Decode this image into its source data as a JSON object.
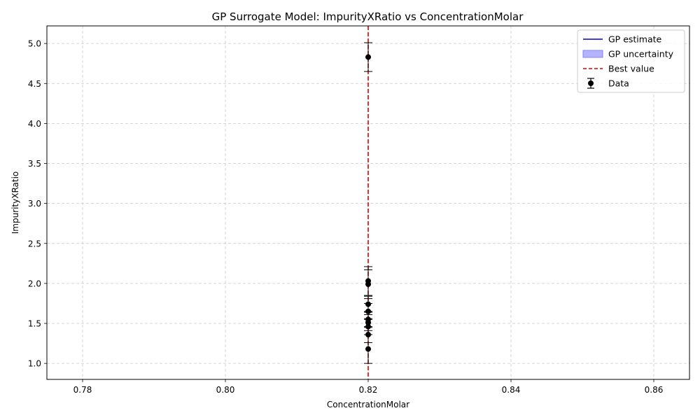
{
  "chart_data": {
    "type": "scatter",
    "title": "GP Surrogate Model: ImpurityXRatio vs ConcentrationMolar",
    "xlabel": "ConcentrationMolar",
    "ylabel": "ImpurityXRatio",
    "xlim": [
      0.775,
      0.865
    ],
    "ylim": [
      0.8,
      5.22
    ],
    "grid": true,
    "legend_position": "top-right",
    "x_ticks": [
      0.78,
      0.8,
      0.82,
      0.84,
      0.86
    ],
    "x_tick_labels": [
      "0.78",
      "0.80",
      "0.82",
      "0.84",
      "0.86"
    ],
    "y_ticks": [
      1.0,
      1.5,
      2.0,
      2.5,
      3.0,
      3.5,
      4.0,
      4.5,
      5.0
    ],
    "y_tick_labels": [
      "1.0",
      "1.5",
      "2.0",
      "2.5",
      "3.0",
      "3.5",
      "4.0",
      "4.5",
      "5.0"
    ],
    "best_value_x": 0.82,
    "legend": [
      {
        "label": "GP estimate",
        "kind": "line",
        "color": "#0000cc"
      },
      {
        "label": "GP uncertainty",
        "kind": "patch",
        "color": "#b3b3ff",
        "edge": "#8080ff"
      },
      {
        "label": "Best value",
        "kind": "dashed",
        "color": "#e00000"
      },
      {
        "label": "Data",
        "kind": "errorbar",
        "color": "#000000"
      }
    ],
    "series": [
      {
        "name": "Data",
        "points": [
          {
            "x": 0.82,
            "y": 4.83,
            "err": 0.18
          },
          {
            "x": 0.82,
            "y": 2.03,
            "err": 0.18
          },
          {
            "x": 0.82,
            "y": 1.99,
            "err": 0.18
          },
          {
            "x": 0.82,
            "y": 1.74,
            "err": 0.1
          },
          {
            "x": 0.82,
            "y": 1.65,
            "err": 0.1
          },
          {
            "x": 0.82,
            "y": 1.55,
            "err": 0.1
          },
          {
            "x": 0.82,
            "y": 1.51,
            "err": 0.1
          },
          {
            "x": 0.82,
            "y": 1.46,
            "err": 0.1
          },
          {
            "x": 0.82,
            "y": 1.36,
            "err": 0.1
          },
          {
            "x": 0.82,
            "y": 1.18,
            "err": 0.18
          }
        ]
      }
    ],
    "colors": {
      "data": "#000000",
      "best_value": "#e00000",
      "grid": "#c8c8c8"
    }
  }
}
